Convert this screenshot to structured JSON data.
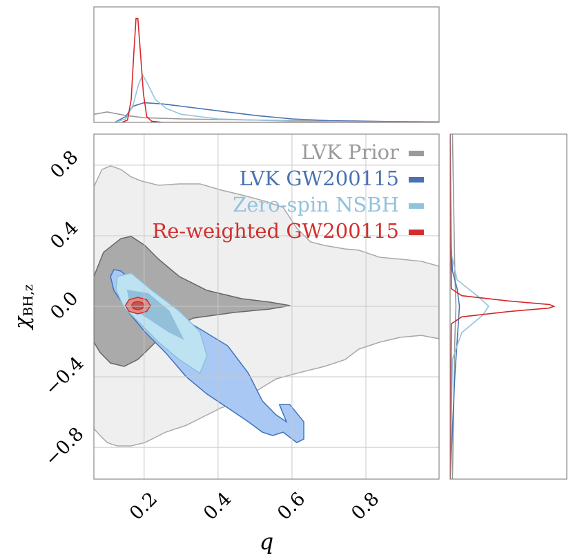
{
  "chart_data": [
    {
      "type": "contour",
      "xlabel": "q",
      "ylabel": "χ",
      "ylabel_subscript": "BH,z",
      "xlim": [
        0.064,
        0.998
      ],
      "ylim": [
        -0.98,
        0.976
      ],
      "xticks": [
        0.2,
        0.4,
        0.6,
        0.8
      ],
      "yticks": [
        {
          "value": -0.8,
          "label": "−0.8"
        },
        {
          "value": -0.4,
          "label": "−0.4"
        },
        {
          "value": 0,
          "label": "0.0"
        },
        0.4,
        0.8
      ],
      "grid": true,
      "legend": "upper right",
      "series": [
        {
          "name": "LVK  Prior",
          "color": "#9a9a9a",
          "levels": [
            {
              "fill": "#efefef",
              "stroke": "#a8a8a8",
              "x": [
                0.064,
                0.086,
                0.109,
                0.137,
                0.165,
                0.193,
                0.239,
                0.295,
                0.351,
                0.408,
                0.464,
                0.52,
                0.576,
                0.613,
                0.65,
                0.688,
                0.744,
                0.781,
                0.837,
                0.893,
                0.95,
                0.998,
                0.998,
                0.95,
                0.893,
                0.837,
                0.781,
                0.744,
                0.688,
                0.613,
                0.557,
                0.52,
                0.464,
                0.408,
                0.37,
                0.314,
                0.258,
                0.202,
                0.165,
                0.127,
                0.1,
                0.081,
                0.064
              ],
              "y": [
                0.678,
                0.776,
                0.796,
                0.776,
                0.733,
                0.71,
                0.686,
                0.694,
                0.694,
                0.659,
                0.631,
                0.6,
                0.561,
                0.443,
                0.365,
                0.345,
                0.325,
                0.318,
                0.278,
                0.267,
                0.255,
                0.227,
                -0.184,
                -0.165,
                -0.176,
                -0.204,
                -0.243,
                -0.302,
                -0.341,
                -0.38,
                -0.412,
                -0.459,
                -0.537,
                -0.576,
                -0.616,
                -0.675,
                -0.714,
                -0.773,
                -0.792,
                -0.792,
                -0.773,
                -0.733,
                -0.694
              ]
            },
            {
              "fill": "#aaaaaa",
              "stroke": "#666666",
              "x": [
                0.064,
                0.09,
                0.137,
                0.165,
                0.202,
                0.239,
                0.295,
                0.37,
                0.464,
                0.539,
                0.595,
                0.539,
                0.445,
                0.333,
                0.258,
                0.221,
                0.183,
                0.146,
                0.109,
                0.081,
                0.064
              ],
              "y": [
                0.169,
                0.306,
                0.384,
                0.396,
                0.345,
                0.267,
                0.169,
                0.09,
                0.043,
                0.024,
                0.004,
                -0.016,
                -0.035,
                -0.067,
                -0.145,
                -0.224,
                -0.302,
                -0.341,
                -0.322,
                -0.263,
                -0.204
              ]
            }
          ]
        },
        {
          "name": "LVK GW200115",
          "color": "#4a72b0",
          "levels": [
            {
              "fill": "#a9c9f4",
              "stroke": "#3f72bd",
              "x": [
                0.118,
                0.137,
                0.174,
                0.239,
                0.333,
                0.426,
                0.482,
                0.52,
                0.557,
                0.585,
                0.566,
                0.594,
                0.632,
                0.632,
                0.613,
                0.576,
                0.548,
                0.52,
                0.482,
                0.426,
                0.37,
                0.314,
                0.258,
                0.202,
                0.155,
                0.118,
                0.109
              ],
              "y": [
                0.208,
                0.2,
                0.129,
                0.012,
                -0.106,
                -0.224,
                -0.38,
                -0.537,
                -0.616,
                -0.655,
                -0.557,
                -0.557,
                -0.655,
                -0.753,
                -0.773,
                -0.714,
                -0.733,
                -0.714,
                -0.655,
                -0.576,
                -0.498,
                -0.4,
                -0.263,
                -0.145,
                -0.027,
                0.09,
                0.169
              ]
            },
            {
              "fill": "#7fa6d8",
              "stroke": "#3f72bd",
              "x": [
                0.137,
                0.183,
                0.258,
                0.314,
                0.333,
                0.305,
                0.239,
                0.183,
                0.146,
                0.127
              ],
              "y": [
                0.149,
                0.09,
                -0.027,
                -0.184,
                -0.243,
                -0.224,
                -0.125,
                -0.047,
                0.012,
                0.09
              ]
            }
          ]
        },
        {
          "name": "Zero-spin  NSBH",
          "color": "#92c3de",
          "levels": [
            {
              "fill": "#bde2f2",
              "stroke": "#8bc0dd",
              "x": [
                0.127,
                0.165,
                0.221,
                0.295,
                0.351,
                0.37,
                0.351,
                0.295,
                0.239,
                0.193,
                0.146,
                0.124
              ],
              "y": [
                0.169,
                0.188,
                0.09,
                -0.027,
                -0.145,
                -0.282,
                -0.38,
                -0.302,
                -0.204,
                -0.106,
                -0.008,
                0.09
              ]
            },
            {
              "fill": "#93bfd9",
              "stroke": "#8bc0dd",
              "x": [
                0.155,
                0.211,
                0.267,
                0.305,
                0.267,
                0.211,
                0.165
              ],
              "y": [
                0.09,
                0.071,
                -0.027,
                -0.184,
                -0.145,
                -0.067,
                -0.008
              ]
            }
          ]
        },
        {
          "name": "Re-weighted GW200115",
          "color": "#d1302f",
          "levels": [
            {
              "fill": "#e28a85",
              "stroke": "#c83030",
              "x": [
                0.217,
                0.207,
                0.183,
                0.159,
                0.149,
                0.159,
                0.183,
                0.207
              ],
              "y": [
                0.004,
                0.037,
                0.051,
                0.037,
                0.004,
                -0.029,
                -0.043,
                -0.029
              ]
            },
            {
              "fill": "#c05555",
              "stroke": "#c83030",
              "x": [
                0.2,
                0.195,
                0.183,
                0.171,
                0.166,
                0.171,
                0.183,
                0.195
              ],
              "y": [
                0.004,
                0.021,
                0.028,
                0.021,
                0.004,
                -0.013,
                -0.02,
                -0.013
              ]
            }
          ]
        }
      ]
    },
    {
      "type": "line",
      "xlim": [
        0.064,
        0.998
      ],
      "ylim": [
        0,
        1
      ],
      "series": [
        {
          "color": "#999999",
          "x": [
            0.064,
            0.1,
            0.15,
            0.2,
            0.3,
            0.5,
            0.7,
            0.998
          ],
          "y": [
            0.07,
            0.09,
            0.06,
            0.04,
            0.03,
            0.02,
            0.01,
            0.005
          ]
        },
        {
          "color": "#4a72b0",
          "x": [
            0.12,
            0.15,
            0.17,
            0.2,
            0.25,
            0.3,
            0.4,
            0.5,
            0.6,
            0.7,
            0.8,
            0.998
          ],
          "y": [
            0,
            0.05,
            0.14,
            0.17,
            0.16,
            0.14,
            0.1,
            0.06,
            0.03,
            0.015,
            0.01,
            0
          ]
        },
        {
          "color": "#92c3de",
          "x": [
            0.12,
            0.15,
            0.17,
            0.185,
            0.196,
            0.21,
            0.23,
            0.26,
            0.3,
            0.4,
            0.6,
            0.998
          ],
          "y": [
            0,
            0.03,
            0.15,
            0.33,
            0.41,
            0.33,
            0.2,
            0.12,
            0.07,
            0.03,
            0.01,
            0
          ]
        },
        {
          "color": "#d62728",
          "x": [
            0.14,
            0.155,
            0.165,
            0.172,
            0.178,
            0.183,
            0.19,
            0.198,
            0.207,
            0.22,
            0.25,
            0.998
          ],
          "y": [
            0,
            0.02,
            0.2,
            0.6,
            0.9,
            0.9,
            0.6,
            0.25,
            0.05,
            0.01,
            0,
            0
          ]
        }
      ]
    },
    {
      "type": "line",
      "xlim": [
        0,
        1
      ],
      "ylim": [
        -0.98,
        0.976
      ],
      "series": [
        {
          "color": "#999999",
          "x": [
            0.02,
            0.03,
            0.04,
            0.05,
            0.04,
            0.03,
            0.02
          ],
          "y": [
            -0.98,
            -0.6,
            -0.2,
            0,
            0.2,
            0.6,
            0.976
          ]
        },
        {
          "color": "#4a72b0",
          "x": [
            0,
            0.02,
            0.04,
            0.06,
            0.08,
            0.06,
            0.02,
            0.005,
            0
          ],
          "y": [
            -0.98,
            -0.7,
            -0.4,
            -0.2,
            0,
            0.1,
            0.2,
            0.4,
            0.976
          ]
        },
        {
          "color": "#92c3de",
          "x": [
            0,
            0.02,
            0.1,
            0.28,
            0.33,
            0.25,
            0.06,
            0.01,
            0
          ],
          "y": [
            -0.98,
            -0.3,
            -0.15,
            -0.05,
            0,
            0.05,
            0.15,
            0.3,
            0.976
          ]
        },
        {
          "color": "#d62728",
          "x": [
            0,
            0.01,
            0.1,
            0.5,
            0.85,
            0.89,
            0.85,
            0.5,
            0.1,
            0.01,
            0
          ],
          "y": [
            -0.98,
            -0.1,
            -0.06,
            -0.03,
            -0.01,
            0,
            0.01,
            0.03,
            0.06,
            0.1,
            0.976
          ]
        }
      ]
    }
  ]
}
